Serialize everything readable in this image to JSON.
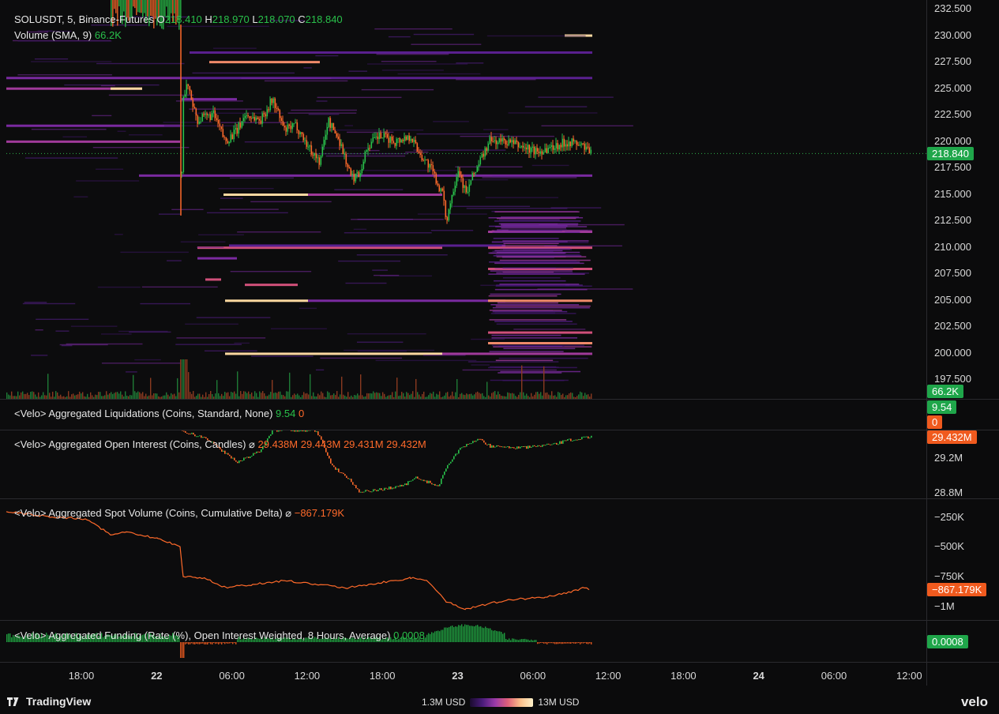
{
  "symbol_legend": {
    "name": "SOLUSDT, 5, Binance-Futures",
    "o_label": "O",
    "o_value": "218.410",
    "h_label": "H",
    "h_value": "218.970",
    "l_label": "L",
    "l_value": "218.070",
    "c_label": "C",
    "c_value": "218.840"
  },
  "volume_legend": {
    "name": "Volume (SMA, 9)",
    "value": "66.2K"
  },
  "price_axis": {
    "ticks": [
      "232.500",
      "230.000",
      "227.500",
      "225.000",
      "222.500",
      "220.000",
      "217.500",
      "215.000",
      "212.500",
      "210.000",
      "207.500",
      "205.000",
      "202.500",
      "200.000",
      "197.500"
    ],
    "last_price": "218.840",
    "volume_badge": "66.2K"
  },
  "liquidations": {
    "name": "<Velo> Aggregated Liquidations (Coins, Standard, None)",
    "v1": "9.54",
    "v2": "0",
    "badge1": "9.54",
    "badge2": "0"
  },
  "open_interest": {
    "name": "<Velo> Aggregated Open Interest (Coins, Candles)",
    "symbol": "⌀",
    "values": [
      "29.438M",
      "29.443M",
      "29.431M",
      "29.432M"
    ],
    "badge": "29.432M",
    "ticks": [
      "29.2M",
      "28.8M"
    ]
  },
  "spot_volume": {
    "name": "<Velo> Aggregated Spot Volume (Coins, Cumulative Delta)",
    "symbol": "⌀",
    "value": "−867.179K",
    "badge": "−867.179K",
    "ticks": [
      "−250K",
      "−500K",
      "−750K",
      "−1M"
    ]
  },
  "funding": {
    "name": "<Velo> Aggregated Funding (Rate (%), Open Interest Weighted, 8 Hours, Average)",
    "value": "0.0008",
    "badge": "0.0008"
  },
  "time_axis": [
    {
      "label": "18:00",
      "day": false
    },
    {
      "label": "22",
      "day": true
    },
    {
      "label": "06:00",
      "day": false
    },
    {
      "label": "12:00",
      "day": false
    },
    {
      "label": "18:00",
      "day": false
    },
    {
      "label": "23",
      "day": true
    },
    {
      "label": "06:00",
      "day": false
    },
    {
      "label": "12:00",
      "day": false
    },
    {
      "label": "18:00",
      "day": false
    },
    {
      "label": "24",
      "day": true
    },
    {
      "label": "06:00",
      "day": false
    },
    {
      "label": "12:00",
      "day": false
    }
  ],
  "footer": {
    "brand": "TradingView",
    "scale_min": "1.3M USD",
    "scale_max": "13M USD",
    "velo": "velo"
  },
  "colors": {
    "up": "#29c04a",
    "down": "#ff6a2a",
    "badge_green": "#1fa64a",
    "badge_orange": "#f05a1e"
  }
}
